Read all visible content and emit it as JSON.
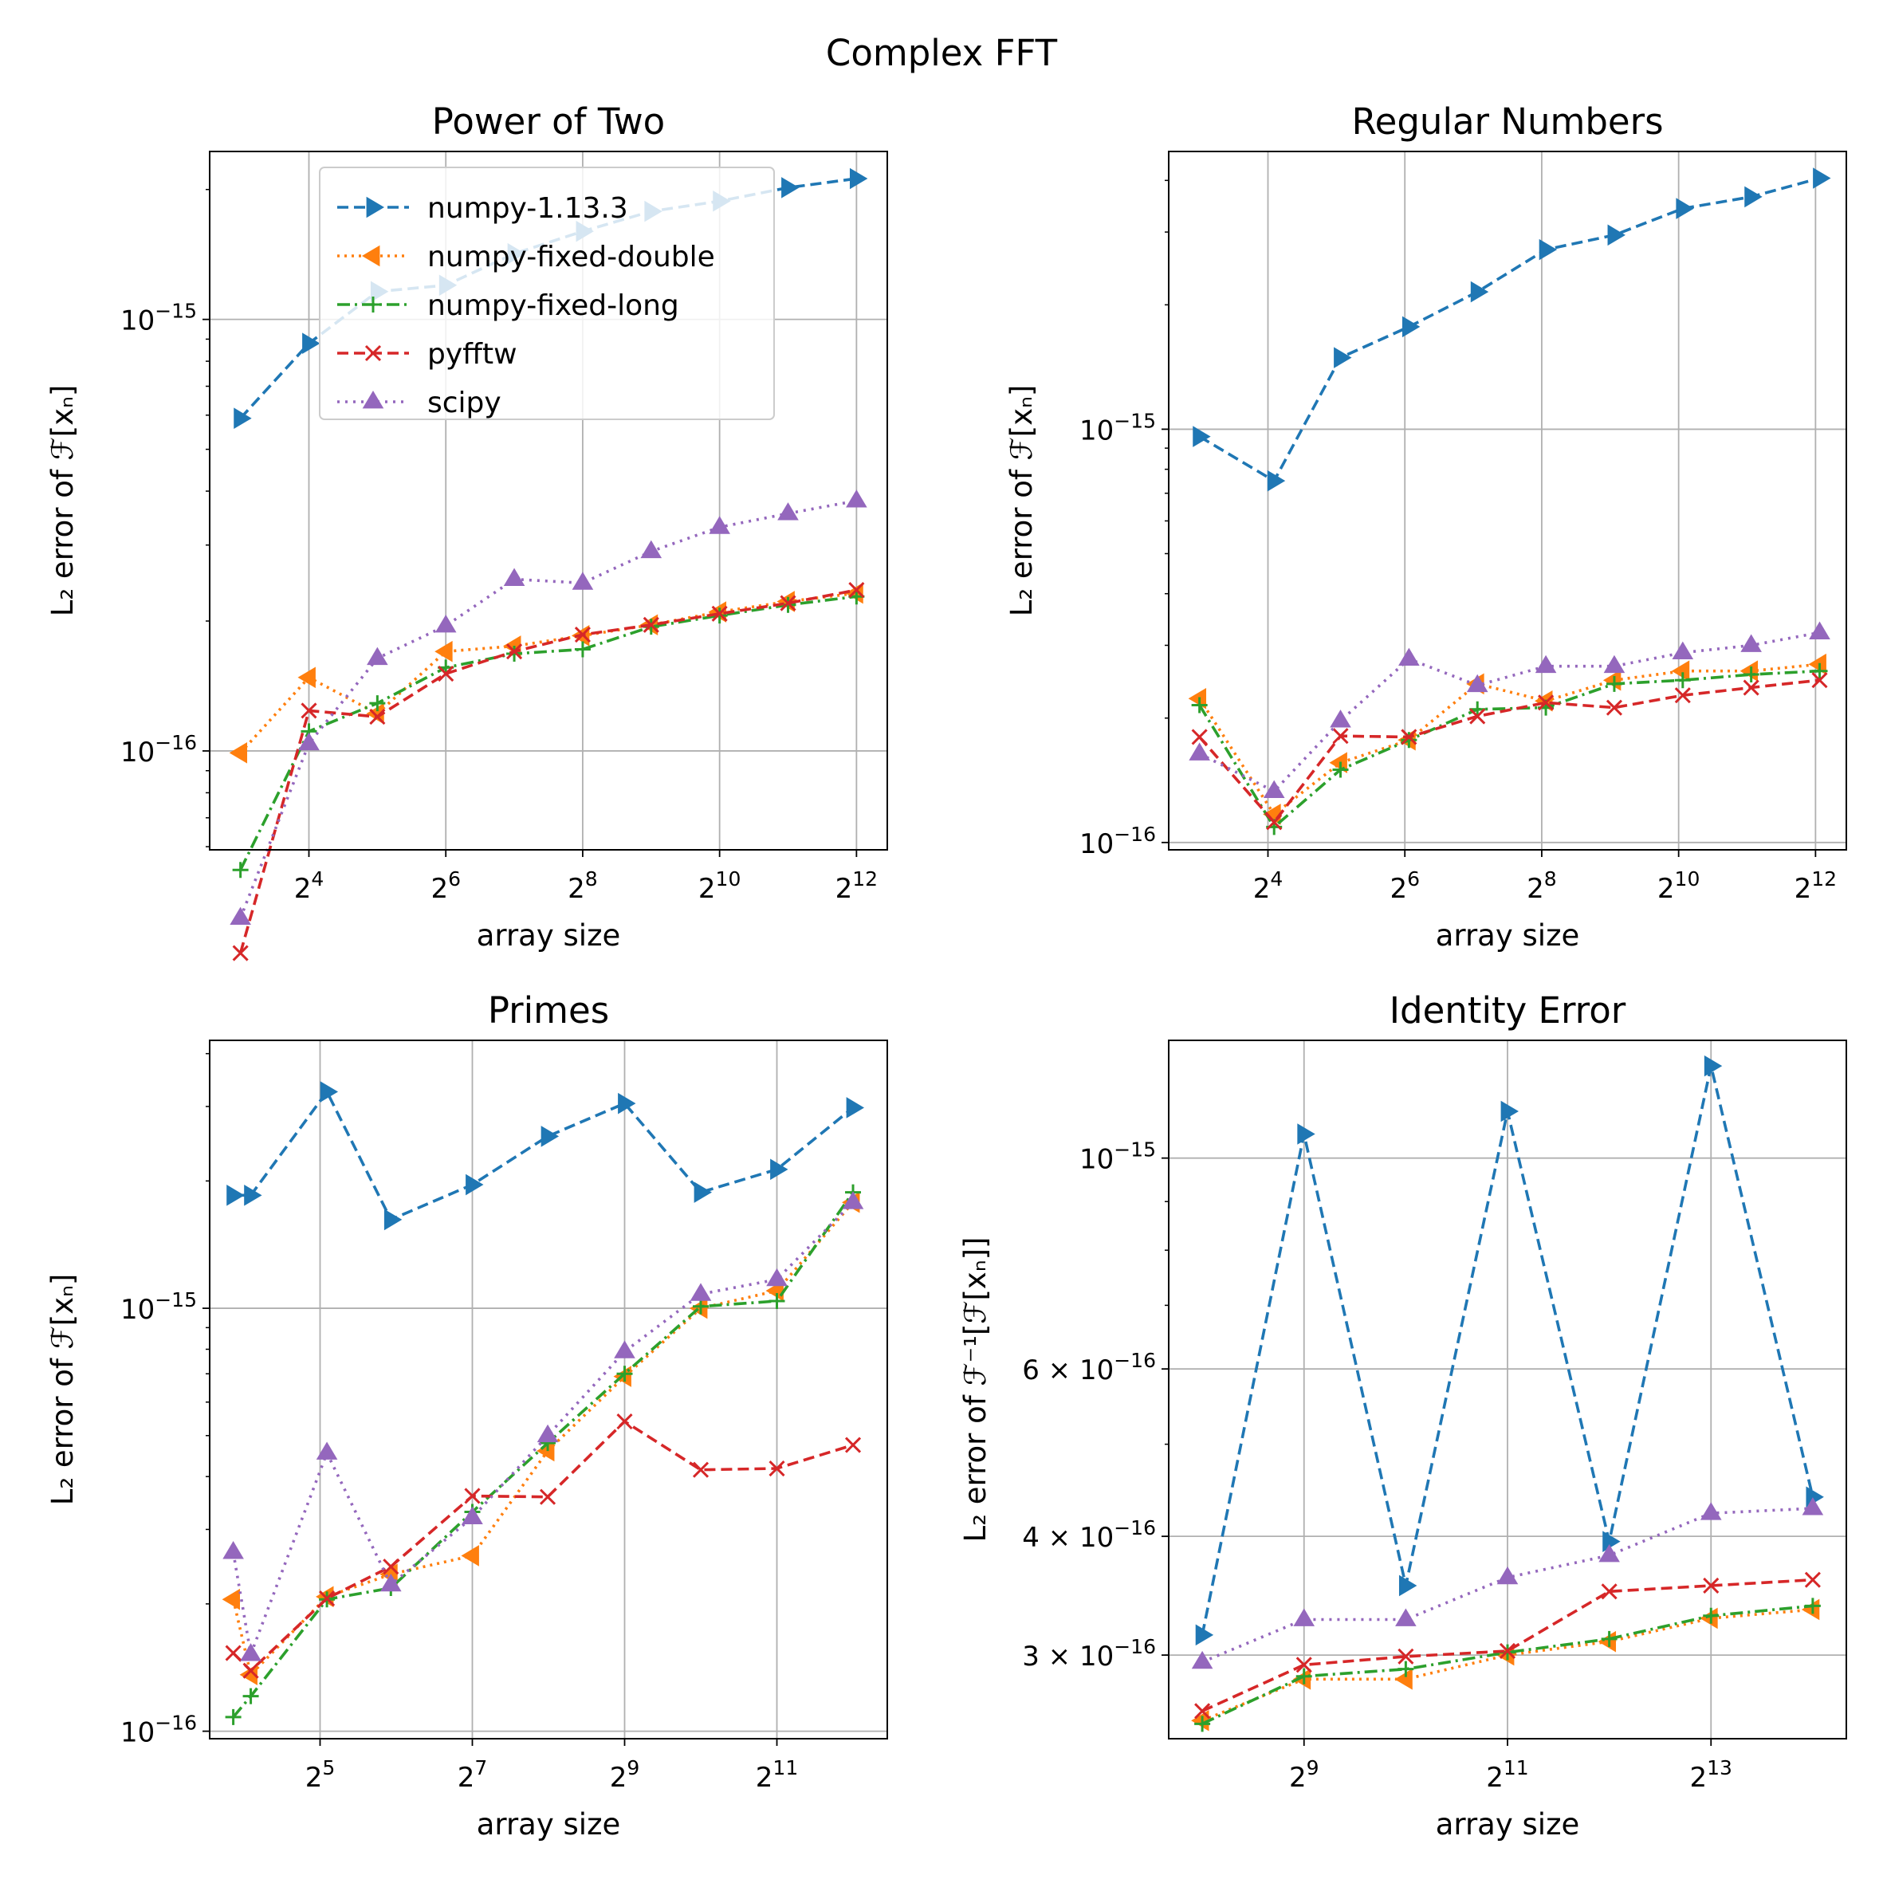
{
  "figure_title": "Complex FFT",
  "legend_labels": [
    "numpy-1.13.3",
    "numpy-fixed-double",
    "numpy-fixed-long",
    "pyfftw",
    "scipy"
  ],
  "colors": [
    "#1f77b4",
    "#ff7f0e",
    "#2ca02c",
    "#d62728",
    "#9467bd"
  ],
  "chart_data": [
    {
      "type": "line",
      "title": "Power of Two",
      "xlabel": "array size",
      "ylabel": "L₂ error of ℱ[xₙ]",
      "xscale": "log2",
      "yscale": "log10",
      "xlim": [
        2.55,
        12.45
      ],
      "ylim": [
        5.9e-17,
        2.45e-15
      ],
      "xticks": [
        {
          "v": 4,
          "base": "2",
          "exp": "4"
        },
        {
          "v": 6,
          "base": "2",
          "exp": "6"
        },
        {
          "v": 8,
          "base": "2",
          "exp": "8"
        },
        {
          "v": 10,
          "base": "2",
          "exp": "10"
        },
        {
          "v": 12,
          "base": "2",
          "exp": "12"
        }
      ],
      "yticks": [
        {
          "v": 1e-16,
          "base": "10",
          "exp": "−16"
        },
        {
          "v": 1e-15,
          "base": "10",
          "exp": "−15"
        }
      ],
      "legend": "upper-center",
      "x": [
        3,
        4,
        5,
        6,
        7,
        8,
        9,
        10,
        11,
        12
      ],
      "series": [
        {
          "name": "numpy-1.13.3",
          "values": [
            5.9e-16,
            8.8e-16,
            1.16e-15,
            1.2e-15,
            1.42e-15,
            1.6e-15,
            1.78e-15,
            1.88e-15,
            2.02e-15,
            2.12e-15
          ]
        },
        {
          "name": "numpy-fixed-double",
          "values": [
            9.9e-17,
            1.48e-16,
            1.22e-16,
            1.7e-16,
            1.75e-16,
            1.85e-16,
            1.96e-16,
            2.1e-16,
            2.22e-16,
            2.32e-16
          ]
        },
        {
          "name": "numpy-fixed-long",
          "values": [
            5.3e-17,
            1.11e-16,
            1.29e-16,
            1.56e-16,
            1.68e-16,
            1.72e-16,
            1.94e-16,
            2.06e-16,
            2.18e-16,
            2.28e-16
          ]
        },
        {
          "name": "pyfftw",
          "values": [
            3.4e-17,
            1.24e-16,
            1.2e-16,
            1.51e-16,
            1.7e-16,
            1.86e-16,
            1.96e-16,
            2.08e-16,
            2.2e-16,
            2.36e-16
          ]
        },
        {
          "name": "scipy",
          "values": [
            4.1e-17,
            1.04e-16,
            1.64e-16,
            1.95e-16,
            2.5e-16,
            2.45e-16,
            2.9e-16,
            3.3e-16,
            3.55e-16,
            3.8e-16
          ]
        }
      ]
    },
    {
      "type": "line",
      "title": "Regular Numbers",
      "xlabel": "array size",
      "ylabel": "L₂ error of ℱ[xₙ]",
      "xscale": "log2",
      "yscale": "log10",
      "xlim": [
        2.55,
        12.45
      ],
      "ylim": [
        9.6e-17,
        4.7e-15
      ],
      "xticks": [
        {
          "v": 4,
          "base": "2",
          "exp": "4"
        },
        {
          "v": 6,
          "base": "2",
          "exp": "6"
        },
        {
          "v": 8,
          "base": "2",
          "exp": "8"
        },
        {
          "v": 10,
          "base": "2",
          "exp": "10"
        },
        {
          "v": 12,
          "base": "2",
          "exp": "12"
        }
      ],
      "yticks": [
        {
          "v": 1e-16,
          "base": "10",
          "exp": "−16"
        },
        {
          "v": 1e-15,
          "base": "10",
          "exp": "−15"
        }
      ],
      "legend": "none",
      "x": [
        3,
        4.09,
        5.06,
        6.06,
        7.06,
        8.06,
        9.06,
        10.06,
        11.06,
        12.06
      ],
      "series": [
        {
          "name": "numpy-1.13.3",
          "values": [
            9.6e-16,
            7.5e-16,
            1.49e-15,
            1.77e-15,
            2.15e-15,
            2.72e-15,
            2.95e-15,
            3.42e-15,
            3.65e-15,
            4.05e-15
          ]
        },
        {
          "name": "numpy-fixed-double",
          "values": [
            2.23e-16,
            1.17e-16,
            1.56e-16,
            1.77e-16,
            2.42e-16,
            2.2e-16,
            2.47e-16,
            2.6e-16,
            2.6e-16,
            2.7e-16
          ]
        },
        {
          "name": "numpy-fixed-long",
          "values": [
            2.15e-16,
            1.09e-16,
            1.5e-16,
            1.77e-16,
            2.1e-16,
            2.12e-16,
            2.42e-16,
            2.47e-16,
            2.55e-16,
            2.6e-16
          ]
        },
        {
          "name": "pyfftw",
          "values": [
            1.8e-16,
            1.12e-16,
            1.81e-16,
            1.8e-16,
            2.02e-16,
            2.18e-16,
            2.12e-16,
            2.27e-16,
            2.37e-16,
            2.47e-16
          ]
        },
        {
          "name": "scipy",
          "values": [
            1.64e-16,
            1.33e-16,
            1.97e-16,
            2.78e-16,
            2.4e-16,
            2.67e-16,
            2.67e-16,
            2.88e-16,
            3e-16,
            3.22e-16
          ]
        }
      ]
    },
    {
      "type": "line",
      "title": "Primes",
      "xlabel": "array size",
      "ylabel": "L₂ error of ℱ[xₙ]",
      "xscale": "log2",
      "yscale": "log10",
      "xlim": [
        3.55,
        12.45
      ],
      "ylim": [
        9.6e-17,
        4.3e-15
      ],
      "xticks": [
        {
          "v": 5,
          "base": "2",
          "exp": "5"
        },
        {
          "v": 7,
          "base": "2",
          "exp": "7"
        },
        {
          "v": 9,
          "base": "2",
          "exp": "9"
        },
        {
          "v": 11,
          "base": "2",
          "exp": "11"
        }
      ],
      "yticks": [
        {
          "v": 1e-16,
          "base": "10",
          "exp": "−16"
        },
        {
          "v": 1e-15,
          "base": "10",
          "exp": "−15"
        }
      ],
      "legend": "none",
      "x": [
        3.86,
        4.09,
        5.09,
        5.93,
        7.0,
        7.99,
        9.0,
        10.0,
        11.0,
        12.0
      ],
      "series": [
        {
          "name": "numpy-1.13.3",
          "values": [
            1.85e-15,
            1.85e-15,
            3.25e-15,
            1.62e-15,
            1.96e-15,
            2.55e-15,
            3.05e-15,
            1.88e-15,
            2.13e-15,
            2.98e-15
          ]
        },
        {
          "name": "numpy-fixed-double",
          "values": [
            2.05e-16,
            1.36e-16,
            2.08e-16,
            2.35e-16,
            2.6e-16,
            4.6e-16,
            6.9e-16,
            1e-15,
            1.1e-15,
            1.78e-15
          ]
        },
        {
          "name": "numpy-fixed-long",
          "values": [
            1.08e-16,
            1.21e-16,
            2.05e-16,
            2.18e-16,
            3.3e-16,
            4.8e-16,
            7e-16,
            1.01e-15,
            1.04e-15,
            1.88e-15
          ]
        },
        {
          "name": "pyfftw",
          "values": [
            1.53e-16,
            1.39e-16,
            2.06e-16,
            2.45e-16,
            3.6e-16,
            3.58e-16,
            5.4e-16,
            4.15e-16,
            4.18e-16,
            4.75e-16
          ]
        },
        {
          "name": "scipy",
          "values": [
            2.65e-16,
            1.52e-16,
            4.55e-16,
            2.22e-16,
            3.2e-16,
            5e-16,
            7.9e-16,
            1.08e-15,
            1.17e-15,
            1.78e-15
          ]
        }
      ]
    },
    {
      "type": "line",
      "title": "Identity Error",
      "xlabel": "array size",
      "ylabel": "L₂ error of ℱ⁻¹[ℱ[xₙ]]",
      "xscale": "log2",
      "yscale": "log10",
      "xlim": [
        7.67,
        14.33
      ],
      "ylim": [
        2.45e-16,
        1.33e-15
      ],
      "xticks": [
        {
          "v": 9,
          "base": "2",
          "exp": "9"
        },
        {
          "v": 11,
          "base": "2",
          "exp": "11"
        },
        {
          "v": 13,
          "base": "2",
          "exp": "13"
        }
      ],
      "yticks": [
        {
          "v": 1e-15,
          "base": "10",
          "exp": "−15"
        },
        {
          "v": 6e-16,
          "base": "6 × 10",
          "exp": "−16"
        },
        {
          "v": 4e-16,
          "base": "4 × 10",
          "exp": "−16"
        },
        {
          "v": 3e-16,
          "base": "3 × 10",
          "exp": "−16"
        }
      ],
      "legend": "none",
      "x": [
        8,
        9,
        10,
        11,
        12,
        13,
        14
      ],
      "series": [
        {
          "name": "numpy-1.13.3",
          "values": [
            3.15e-16,
            1.06e-15,
            3.55e-16,
            1.12e-15,
            3.95e-16,
            1.25e-15,
            4.4e-16
          ]
        },
        {
          "name": "numpy-fixed-double",
          "values": [
            2.56e-16,
            2.83e-16,
            2.83e-16,
            3e-16,
            3.1e-16,
            3.28e-16,
            3.35e-16
          ]
        },
        {
          "name": "numpy-fixed-long",
          "values": [
            2.54e-16,
            2.85e-16,
            2.9e-16,
            3.02e-16,
            3.12e-16,
            3.3e-16,
            3.38e-16
          ]
        },
        {
          "name": "pyfftw",
          "values": [
            2.62e-16,
            2.93e-16,
            2.99e-16,
            3.03e-16,
            3.5e-16,
            3.55e-16,
            3.6e-16
          ]
        },
        {
          "name": "scipy",
          "values": [
            2.95e-16,
            3.27e-16,
            3.27e-16,
            3.62e-16,
            3.82e-16,
            4.23e-16,
            4.28e-16
          ]
        }
      ]
    }
  ]
}
